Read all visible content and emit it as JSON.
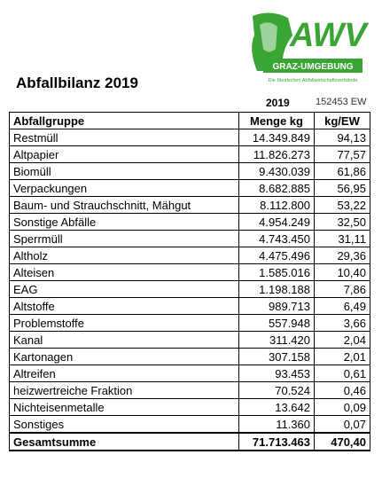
{
  "logo": {
    "text": "AWV",
    "banner": "GRAZ-UMGEBUNG",
    "tagline": "Die Steirischen Abfallwirtschaftsverbände"
  },
  "header": {
    "title": "Abfallbilanz 2019",
    "year": "2019",
    "ew": "152453 EW"
  },
  "table": {
    "columns": [
      "Abfallgruppe",
      "Menge kg",
      "kg/EW"
    ],
    "rows": [
      [
        "Restmüll",
        "14.349.849",
        "94,13"
      ],
      [
        "Altpapier",
        "11.826.273",
        "77,57"
      ],
      [
        "Biomüll",
        "9.430.039",
        "61,86"
      ],
      [
        "Verpackungen",
        "8.682.885",
        "56,95"
      ],
      [
        "Baum- und Strauchschnitt, Mähgut",
        "8.112.800",
        "53,22"
      ],
      [
        "Sonstige Abfälle",
        "4.954.249",
        "32,50"
      ],
      [
        "Sperrmüll",
        "4.743.450",
        "31,11"
      ],
      [
        "Altholz",
        "4.475.496",
        "29,36"
      ],
      [
        "Alteisen",
        "1.585.016",
        "10,40"
      ],
      [
        "EAG",
        "1.198.188",
        "7,86"
      ],
      [
        "Altstoffe",
        "989.713",
        "6,49"
      ],
      [
        "Problemstoffe",
        "557.948",
        "3,66"
      ],
      [
        "Kanal",
        "311.420",
        "2,04"
      ],
      [
        "Kartonagen",
        "307.158",
        "2,01"
      ],
      [
        "Altreifen",
        "93.453",
        "0,61"
      ],
      [
        "heizwertreiche Fraktion",
        "70.524",
        "0,46"
      ],
      [
        "Nichteisenmetalle",
        "13.642",
        "0,09"
      ],
      [
        "Sonstiges",
        "11.360",
        "0,07"
      ]
    ],
    "total": [
      "Gesamtsumme",
      "71.713.463",
      "470,40"
    ]
  }
}
